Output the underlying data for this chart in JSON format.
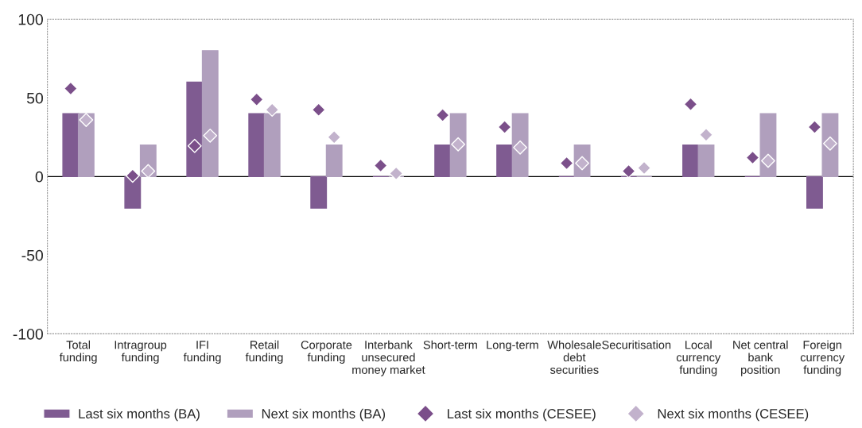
{
  "chart_data": {
    "type": "bar",
    "categories": [
      "Total\nfunding",
      "Intragroup\nfunding",
      "IFI\nfunding",
      "Retail\nfunding",
      "Corporate\nfunding",
      "Interbank\nunsecured\nmoney market",
      "Short-term",
      "Long-term",
      "Wholesale\ndebt\nsecurities",
      "Securitisation",
      "Local\ncurrency\nfunding",
      "Net central\nbank\nposition",
      "Foreign\ncurrency\nfunding"
    ],
    "series": [
      {
        "name": "Last six months (BA)",
        "type": "bar",
        "color": "#7f5b91",
        "values": [
          40,
          -20,
          60,
          40,
          -20,
          0,
          20,
          20,
          0,
          0,
          20,
          0,
          -20
        ]
      },
      {
        "name": "Next six months (BA)",
        "type": "bar",
        "color": "#b09fbd",
        "values": [
          40,
          20,
          80,
          40,
          20,
          0,
          40,
          40,
          20,
          0,
          20,
          40,
          40
        ]
      },
      {
        "name": "Last six months (CESEE)",
        "type": "scatter",
        "marker": "diamond",
        "color": "#7b4f8a",
        "values": [
          56,
          0.5,
          19.5,
          49,
          42.5,
          7,
          39,
          31.5,
          8.5,
          3.5,
          46,
          12,
          31.5
        ]
      },
      {
        "name": "Next six months (CESEE)",
        "type": "scatter",
        "marker": "diamond",
        "color": "#c2b2cc",
        "values": [
          36,
          3.5,
          26,
          42.5,
          25,
          2,
          20.5,
          18.5,
          8.5,
          5.5,
          26.5,
          10,
          21
        ]
      }
    ],
    "ylim": [
      -100,
      100
    ],
    "yticks": [
      -100,
      -50,
      0,
      50,
      100
    ],
    "ref_lines": [
      {
        "axis": "y",
        "value": 0,
        "color": "#000000"
      }
    ],
    "grid": false,
    "legend": "bottom"
  }
}
